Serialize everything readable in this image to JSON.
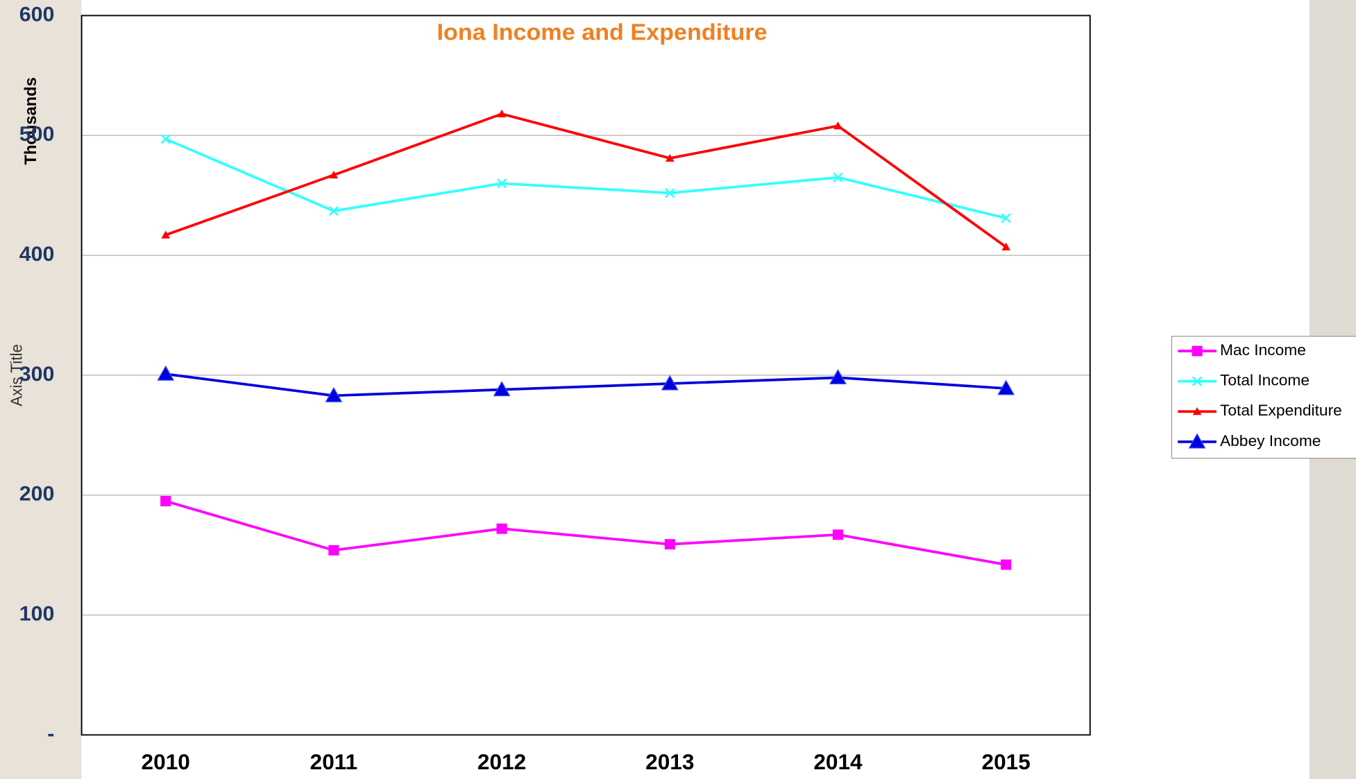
{
  "chart_data": {
    "type": "line",
    "title": "Iona Income and Expenditure",
    "y_axis_label": "Axis Title",
    "y_units_label": "Thousands",
    "categories": [
      "2010",
      "2011",
      "2012",
      "2013",
      "2014",
      "2015"
    ],
    "series": [
      {
        "name": "Mac Income",
        "color": "#ff00ff",
        "marker": "square",
        "values": [
          195,
          154,
          172,
          159,
          167,
          142
        ]
      },
      {
        "name": "Total Income",
        "color": "#33ffff",
        "marker": "x",
        "values": [
          497,
          437,
          460,
          452,
          465,
          431
        ]
      },
      {
        "name": "Total Expenditure",
        "color": "#ff0000",
        "marker": "triangle",
        "values": [
          417,
          467,
          518,
          481,
          508,
          407
        ]
      },
      {
        "name": "Abbey Income",
        "color": "#0000dd",
        "marker": "big-triangle",
        "values": [
          301,
          283,
          288,
          293,
          298,
          289
        ]
      }
    ],
    "ylim": [
      0,
      600
    ],
    "yticks": [
      {
        "value": 0,
        "label": "-"
      },
      100,
      200,
      300,
      400,
      500,
      600
    ],
    "grid": true,
    "legend": "right"
  }
}
